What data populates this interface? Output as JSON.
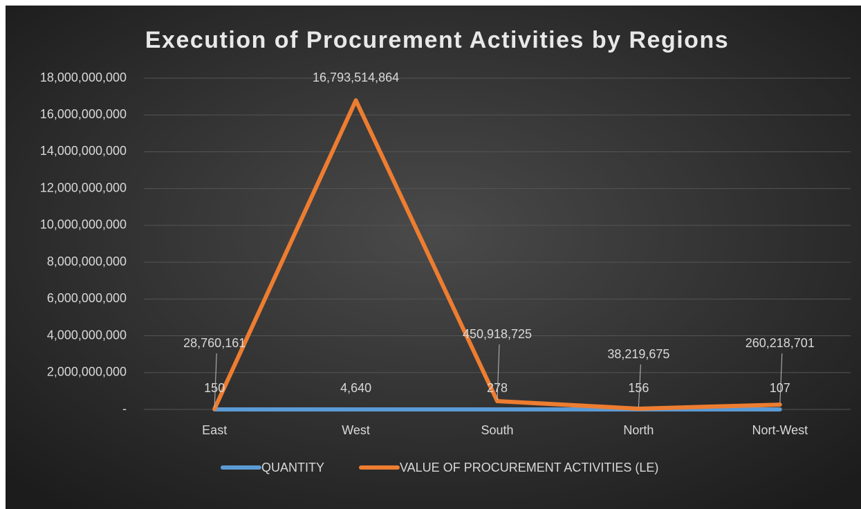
{
  "chart_data": {
    "type": "line",
    "title": "Execution of Procurement Activities by Regions",
    "categories": [
      "East",
      "West",
      "South",
      "North",
      "Nort-West"
    ],
    "series": [
      {
        "name": "QUANTITY",
        "color": "#5b9bd5",
        "values": [
          150,
          4640,
          278,
          156,
          107
        ],
        "value_labels": [
          "150",
          "4,640",
          "278",
          "156",
          "107"
        ]
      },
      {
        "name": "VALUE OF PROCUREMENT ACTIVITIES (LE)",
        "color": "#ed7d31",
        "values": [
          28760161,
          16793514864,
          450918725,
          38219675,
          260218701
        ],
        "value_labels": [
          "28,760,161",
          "16,793,514,864",
          "450,918,725",
          "38,219,675",
          "260,218,701"
        ]
      }
    ],
    "ylim": [
      0,
      18000000000
    ],
    "yticks": [
      {
        "value": 0,
        "label": "-"
      },
      {
        "value": 2000000000,
        "label": "2,000,000,000"
      },
      {
        "value": 4000000000,
        "label": "4,000,000,000"
      },
      {
        "value": 6000000000,
        "label": "6,000,000,000"
      },
      {
        "value": 8000000000,
        "label": "8,000,000,000"
      },
      {
        "value": 10000000000,
        "label": "10,000,000,000"
      },
      {
        "value": 12000000000,
        "label": "12,000,000,000"
      },
      {
        "value": 14000000000,
        "label": "14,000,000,000"
      },
      {
        "value": 16000000000,
        "label": "16,000,000,000"
      },
      {
        "value": 18000000000,
        "label": "18,000,000,000"
      }
    ],
    "grid": true,
    "legend": "bottom"
  }
}
